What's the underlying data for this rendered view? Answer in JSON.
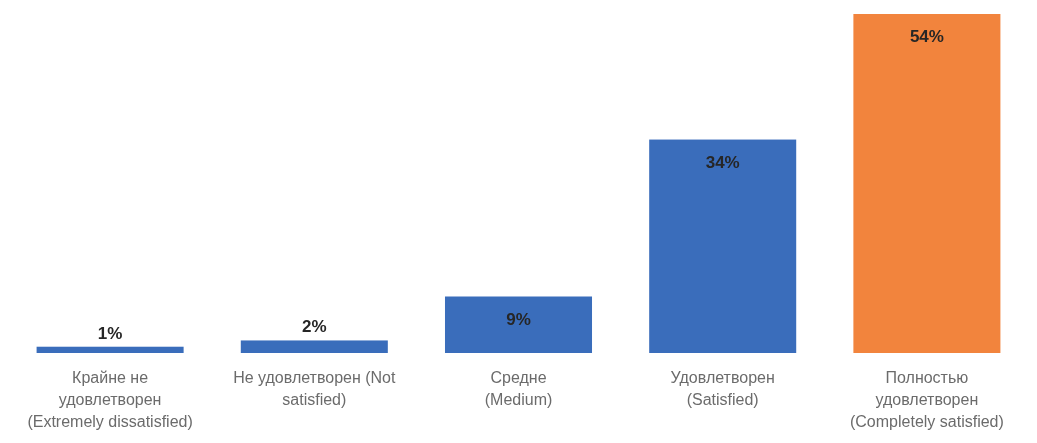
{
  "chart_data": {
    "type": "bar",
    "categories": [
      "Крайне не удовлетворен (Extremely dissatisfied)",
      "Не удовлетворен (Not satisfied)",
      "Средне (Medium)",
      "Удовлетворен (Satisfied)",
      "Полностью удовлетворен (Completely satisfied)"
    ],
    "values": [
      1,
      2,
      9,
      34,
      54
    ],
    "colors": [
      "#3a6dbb",
      "#3a6dbb",
      "#3a6dbb",
      "#3a6dbb",
      "#f2843d"
    ],
    "value_labels": [
      "1%",
      "2%",
      "9%",
      "34%",
      "54%"
    ]
  }
}
